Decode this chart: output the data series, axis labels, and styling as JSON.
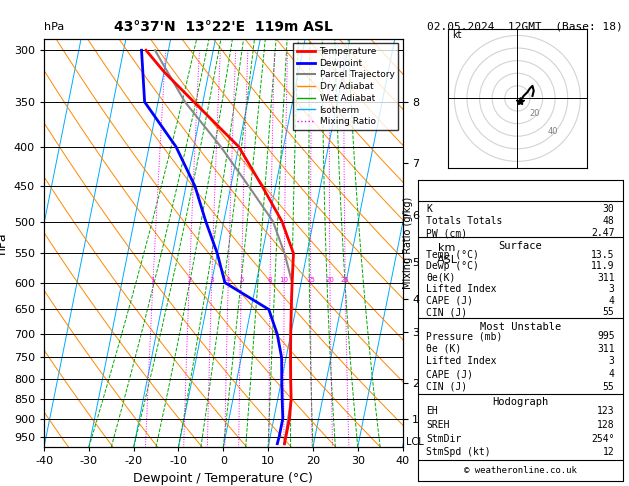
{
  "title_left": "43°37'N  13°22'E  119m ASL",
  "title_right": "02.05.2024  12GMT  (Base: 18)",
  "xlabel": "Dewpoint / Temperature (°C)",
  "ylabel_left": "hPa",
  "legend_entries": [
    {
      "label": "Temperature",
      "color": "#ff0000",
      "lw": 2,
      "ls": "-"
    },
    {
      "label": "Dewpoint",
      "color": "#0000ff",
      "lw": 2,
      "ls": "-"
    },
    {
      "label": "Parcel Trajectory",
      "color": "#808080",
      "lw": 1.5,
      "ls": "-"
    },
    {
      "label": "Dry Adiabat",
      "color": "#ff8800",
      "lw": 1,
      "ls": "-"
    },
    {
      "label": "Wet Adiabat",
      "color": "#00aa00",
      "lw": 1,
      "ls": "-"
    },
    {
      "label": "Isotherm",
      "color": "#00aaff",
      "lw": 1,
      "ls": "-"
    },
    {
      "label": "Mixing Ratio",
      "color": "#ff00ff",
      "lw": 1,
      "ls": ":"
    }
  ],
  "stats_table": [
    {
      "label": "K",
      "value": "30"
    },
    {
      "label": "Totals Totals",
      "value": "48"
    },
    {
      "label": "PW (cm)",
      "value": "2.47"
    }
  ],
  "surface_table": [
    {
      "label": "Temp (°C)",
      "value": "13.5"
    },
    {
      "label": "Dewp (°C)",
      "value": "11.9"
    },
    {
      "label": "θe(K)",
      "value": "311"
    },
    {
      "label": "Lifted Index",
      "value": "3"
    },
    {
      "label": "CAPE (J)",
      "value": "4"
    },
    {
      "label": "CIN (J)",
      "value": "55"
    }
  ],
  "unstable_table": [
    {
      "label": "Pressure (mb)",
      "value": "995"
    },
    {
      "label": "θe (K)",
      "value": "311"
    },
    {
      "label": "Lifted Index",
      "value": "3"
    },
    {
      "label": "CAPE (J)",
      "value": "4"
    },
    {
      "label": "CIN (J)",
      "value": "55"
    }
  ],
  "hodograph_table": [
    {
      "label": "EH",
      "value": "123"
    },
    {
      "label": "SREH",
      "value": "128"
    },
    {
      "label": "StmDir",
      "value": "254°"
    },
    {
      "label": "StmSpd (kt)",
      "value": "12"
    }
  ],
  "pressure_levels": [
    300,
    350,
    400,
    450,
    500,
    550,
    600,
    650,
    700,
    750,
    800,
    850,
    900,
    950
  ],
  "pressure_ticks": [
    300,
    350,
    400,
    450,
    500,
    550,
    600,
    650,
    700,
    750,
    800,
    850,
    900,
    950
  ],
  "km_pressures": [
    350,
    420,
    490,
    565,
    630,
    695,
    810,
    900
  ],
  "km_labels": [
    8,
    7,
    6,
    5,
    4,
    3,
    2,
    1
  ],
  "lcl_pressure": 965,
  "temp_profile": {
    "pressure": [
      300,
      320,
      350,
      400,
      450,
      500,
      550,
      600,
      650,
      700,
      750,
      800,
      850,
      900,
      950,
      970
    ],
    "temp": [
      -35,
      -30,
      -22,
      -10,
      -3,
      3,
      7,
      8,
      9,
      10,
      11,
      12,
      13,
      13.5,
      13.5,
      13.5
    ]
  },
  "dewp_profile": {
    "pressure": [
      300,
      350,
      400,
      450,
      500,
      550,
      600,
      650,
      700,
      750,
      800,
      850,
      900,
      950,
      970
    ],
    "temp": [
      -36,
      -33,
      -24,
      -18,
      -14,
      -10,
      -7,
      4,
      7,
      9,
      10,
      11,
      12,
      12,
      11.9
    ]
  },
  "parcel_profile": {
    "pressure": [
      300,
      350,
      400,
      450,
      500,
      550,
      600,
      650,
      700,
      750,
      800,
      850,
      900,
      950,
      970
    ],
    "temp": [
      -33,
      -24,
      -14,
      -6,
      1,
      5,
      8,
      9,
      10,
      11,
      12,
      13,
      13.2,
      13.4,
      13.5
    ]
  },
  "mixing_ratios": [
    1,
    2,
    3,
    4,
    5,
    8,
    10,
    15,
    20,
    25
  ],
  "skew_factor": 15,
  "p_min": 290,
  "p_max": 980
}
